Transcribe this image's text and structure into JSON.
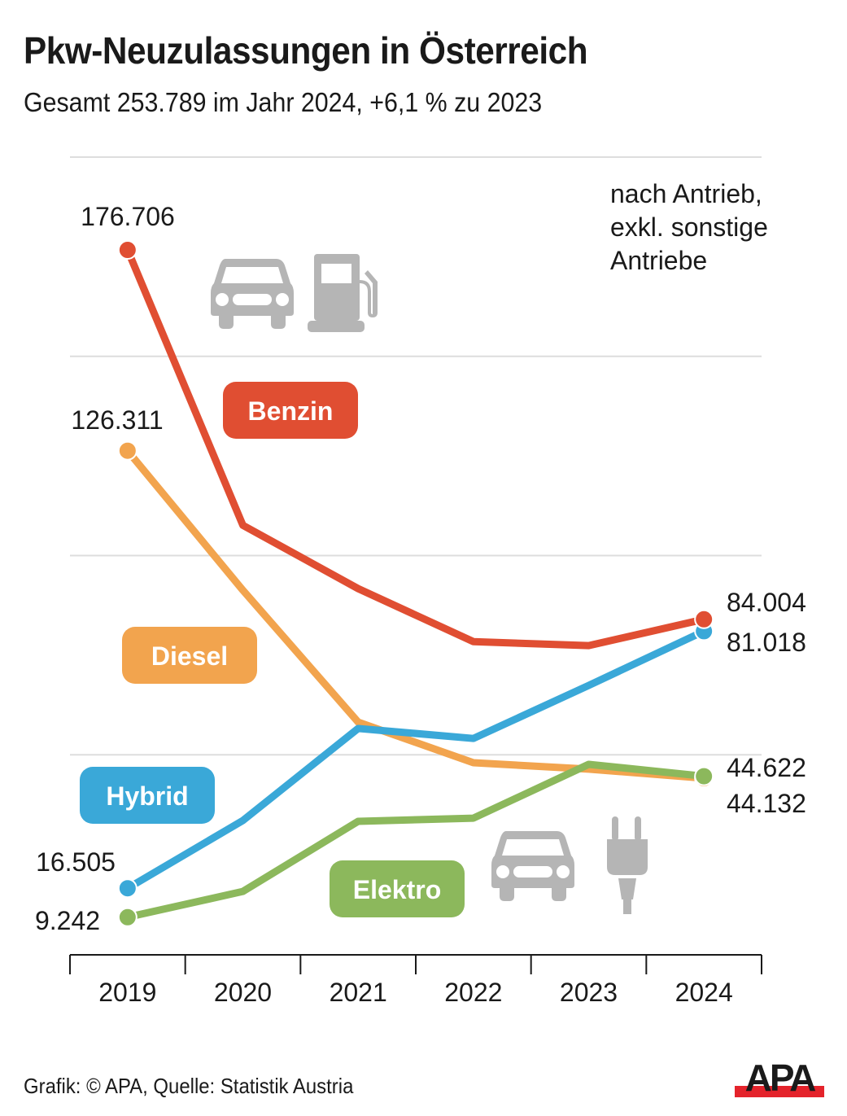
{
  "header": {
    "title": "Pkw-Neuzulassungen in Österreich",
    "subtitle": "Gesamt 253.789 im Jahr 2024, +6,1 % zu 2023"
  },
  "note": {
    "lines": [
      "nach Antrieb,",
      "exkl. sonstige",
      "Antriebe"
    ]
  },
  "footer": {
    "credit": "Grafik: © APA, Quelle: Statistik Austria",
    "logo_text": "APA"
  },
  "colors": {
    "benzin": "#e04e32",
    "diesel": "#f2a44e",
    "hybrid": "#3aa8d8",
    "elektro": "#8cb85c",
    "gridline": "#dddddd",
    "axis": "#1a1a1a",
    "icon": "#b5b5b5",
    "logo_red": "#e4232b"
  },
  "icons": {
    "top": [
      "car-icon",
      "fuel-pump-icon"
    ],
    "bottom": [
      "car-icon",
      "plug-icon"
    ]
  },
  "labels": {
    "benzin_start": "176.706",
    "diesel_start": "126.311",
    "hybrid_start": "16.505",
    "elektro_start": "9.242",
    "benzin_end": "84.004",
    "hybrid_end": "81.018",
    "elektro_end": "44.622",
    "diesel_end": "44.132"
  },
  "chart_data": {
    "type": "line",
    "title": "Pkw-Neuzulassungen in Österreich",
    "subtitle": "Gesamt 253.789 im Jahr 2024, +6,1 % zu 2023",
    "annotation": "nach Antrieb, exkl. sonstige Antriebe",
    "xlabel": "",
    "ylabel": "",
    "categories": [
      "2019",
      "2020",
      "2021",
      "2022",
      "2023",
      "2024"
    ],
    "ylim": [
      0,
      200000
    ],
    "gridlines": [
      50000,
      100000,
      150000,
      200000
    ],
    "grid": true,
    "legend_position": "inline labels",
    "series": [
      {
        "name": "Benzin",
        "color": "#e04e32",
        "values": [
          176706,
          107600,
          91700,
          78400,
          77400,
          84004
        ]
      },
      {
        "name": "Diesel",
        "color": "#f2a44e",
        "values": [
          126311,
          91300,
          58200,
          48000,
          46400,
          44132
        ]
      },
      {
        "name": "Hybrid",
        "color": "#3aa8d8",
        "values": [
          16505,
          33500,
          56600,
          54100,
          67400,
          81018
        ]
      },
      {
        "name": "Elektro",
        "color": "#8cb85c",
        "values": [
          9242,
          15700,
          33300,
          34100,
          47600,
          44622
        ]
      }
    ],
    "source": "Grafik: © APA, Quelle: Statistik Austria"
  }
}
